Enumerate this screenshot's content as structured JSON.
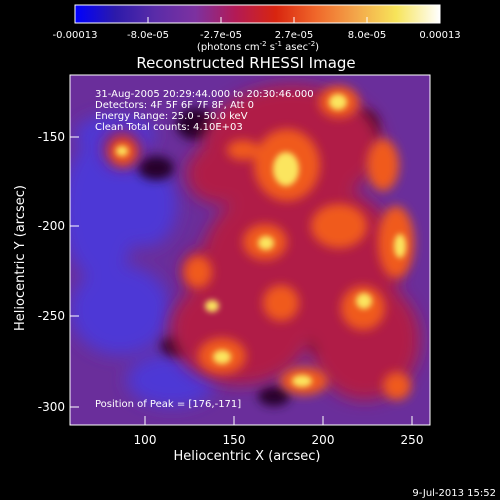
{
  "colorbar": {
    "ticks": [
      "-0.00013",
      "-8.0e-05",
      "-2.7e-05",
      "2.7e-05",
      "8.0e-05",
      "0.00013"
    ],
    "unit_prefix": "(photons cm",
    "unit_exp1": "-2",
    "unit_mid1": " s",
    "unit_exp2": "-1",
    "unit_mid2": " asec",
    "unit_exp3": "-2",
    "unit_suffix": ")",
    "colors": [
      "#0000ff",
      "#2c1aaa",
      "#5a2ca8",
      "#7d31a0",
      "#b31a55",
      "#d8250f",
      "#f0672a",
      "#f3a64a",
      "#f7e45a",
      "#ffffff"
    ]
  },
  "title": "Reconstructed RHESSI Image",
  "info": {
    "line1": "31-Aug-2005 20:29:44.000 to 20:30:46.000",
    "line2": "Detectors: 4F 5F 6F 7F 8F, Att 0",
    "line3": "Energy Range: 25.0 - 50.0 keV",
    "line4": "Clean     Total counts: 4.10E+03",
    "peak": "Position of Peak = [176,-171]"
  },
  "axes": {
    "xlabel": "Heliocentric X (arcsec)",
    "ylabel": "Heliocentric Y (arcsec)",
    "xticks": [
      "100",
      "150",
      "200",
      "250"
    ],
    "yticks": [
      "-150",
      "-200",
      "-250",
      "-300"
    ]
  },
  "footer": {
    "date": "9-Jul-2013 15:52"
  },
  "map_colors": {
    "background": "#6a2e9b",
    "cool": "#4d39d6",
    "dark": "#260029",
    "mid": "#b01e46",
    "warm": "#f05a1c",
    "hot": "#fbe55e"
  }
}
